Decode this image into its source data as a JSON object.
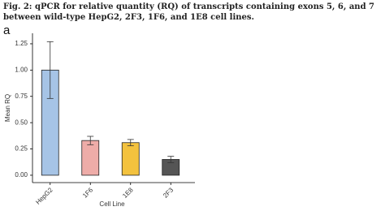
{
  "caption": "Fig. 2: qPCR for relative quantity (RQ) of transcripts containing exons 5, 6, and 7 between wild-type HepG2, 2F3, 1F6, and 1E8 cell lines.",
  "chart_data": {
    "type": "bar",
    "panel_label": "a",
    "x_label": "Cell Line",
    "y_label": "Mean RQ",
    "categories": [
      "HepG2",
      "1F6",
      "1E8",
      "2F3"
    ],
    "values": [
      1.0,
      0.33,
      0.31,
      0.15
    ],
    "errors": [
      0.27,
      0.04,
      0.03,
      0.03
    ],
    "colors": [
      "#a6c4e6",
      "#eeaca8",
      "#f3c23e",
      "#555555"
    ],
    "ylim": [
      -0.07,
      1.35
    ],
    "yticks": [
      {
        "value": 0,
        "label": "0.00"
      },
      {
        "value": 0.25,
        "label": "0.25"
      },
      {
        "value": 0.5,
        "label": "0.50"
      },
      {
        "value": 0.75,
        "label": "0.75"
      },
      {
        "value": 1,
        "label": "1.00"
      },
      {
        "value": 1.25,
        "label": "1.25"
      }
    ]
  }
}
